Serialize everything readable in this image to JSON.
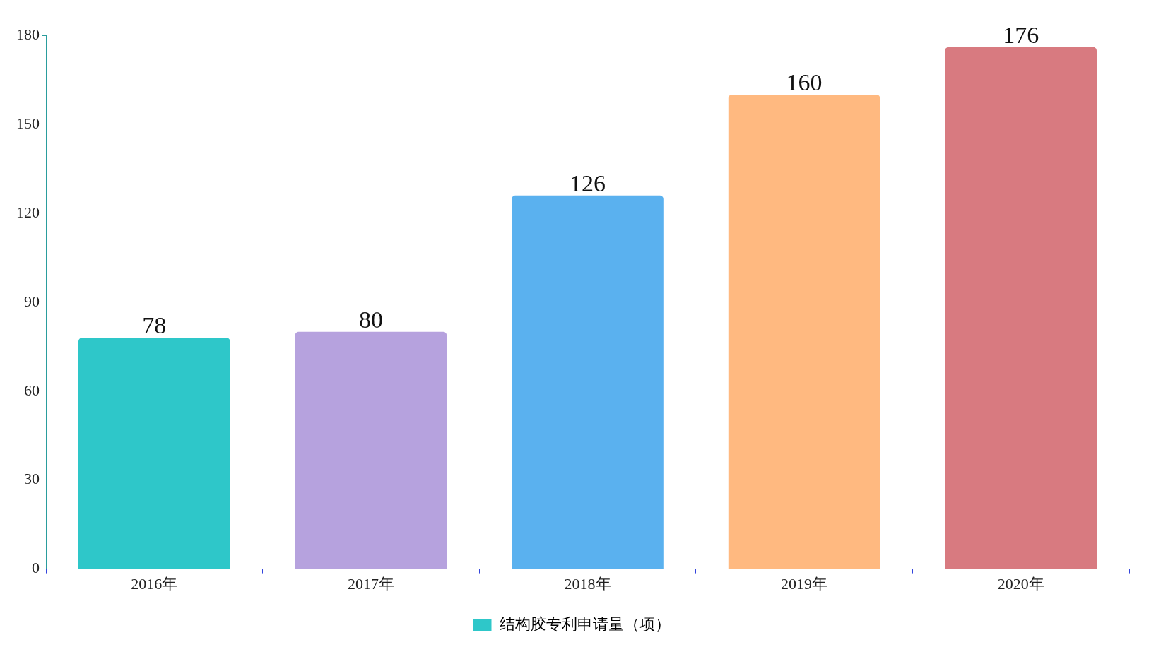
{
  "chart_data": {
    "type": "bar",
    "categories": [
      "2016年",
      "2017年",
      "2018年",
      "2019年",
      "2020年"
    ],
    "series": [
      {
        "name": "结构胶专利申请量（项）",
        "color": "#2ec7c9",
        "colors": [
          "#2ec7c9",
          "#b6a2de",
          "#5ab1ef",
          "#ffb980",
          "#d87a80"
        ],
        "values": [
          78,
          80,
          126,
          160,
          176
        ]
      }
    ],
    "ylim": [
      0,
      180
    ],
    "yticks": [
      0,
      30,
      60,
      90,
      120,
      150,
      180
    ],
    "grid": false,
    "legend": "bottom",
    "data_labels": true
  }
}
